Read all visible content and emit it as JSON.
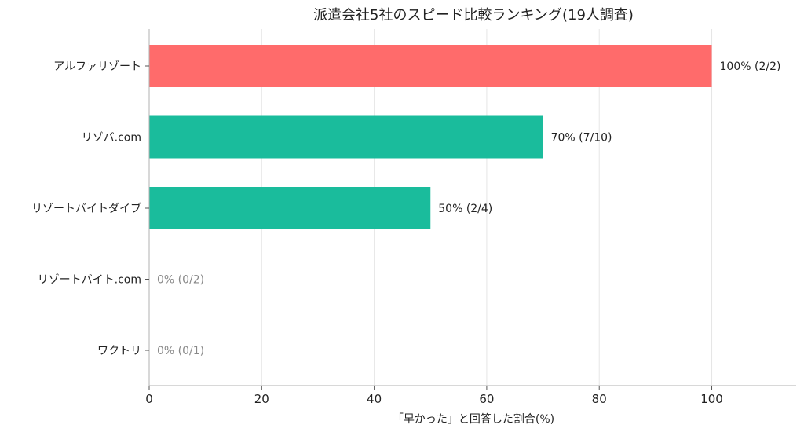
{
  "chart_data": {
    "type": "bar",
    "orientation": "horizontal",
    "title": "派遣会社5社のスピード比較ランキング(19人調査)",
    "xlabel": "「早かった」と回答した割合(%)",
    "ylabel": "",
    "xlim": [
      0,
      115
    ],
    "xticks": [
      0,
      20,
      40,
      60,
      80,
      100
    ],
    "grid": true,
    "categories": [
      "アルファリゾート",
      "リゾバ.com",
      "リゾートバイトダイブ",
      "リゾートバイト.com",
      "ワクトリ"
    ],
    "values": [
      100,
      70,
      50,
      0,
      0
    ],
    "data_labels": [
      "100% (2/2)",
      "70% (7/10)",
      "50% (2/4)",
      "0% (0/2)",
      "0% (0/1)"
    ],
    "bar_colors": [
      "#ff6b6b",
      "#1abc9c",
      "#1abc9c",
      "#1abc9c",
      "#1abc9c"
    ]
  }
}
